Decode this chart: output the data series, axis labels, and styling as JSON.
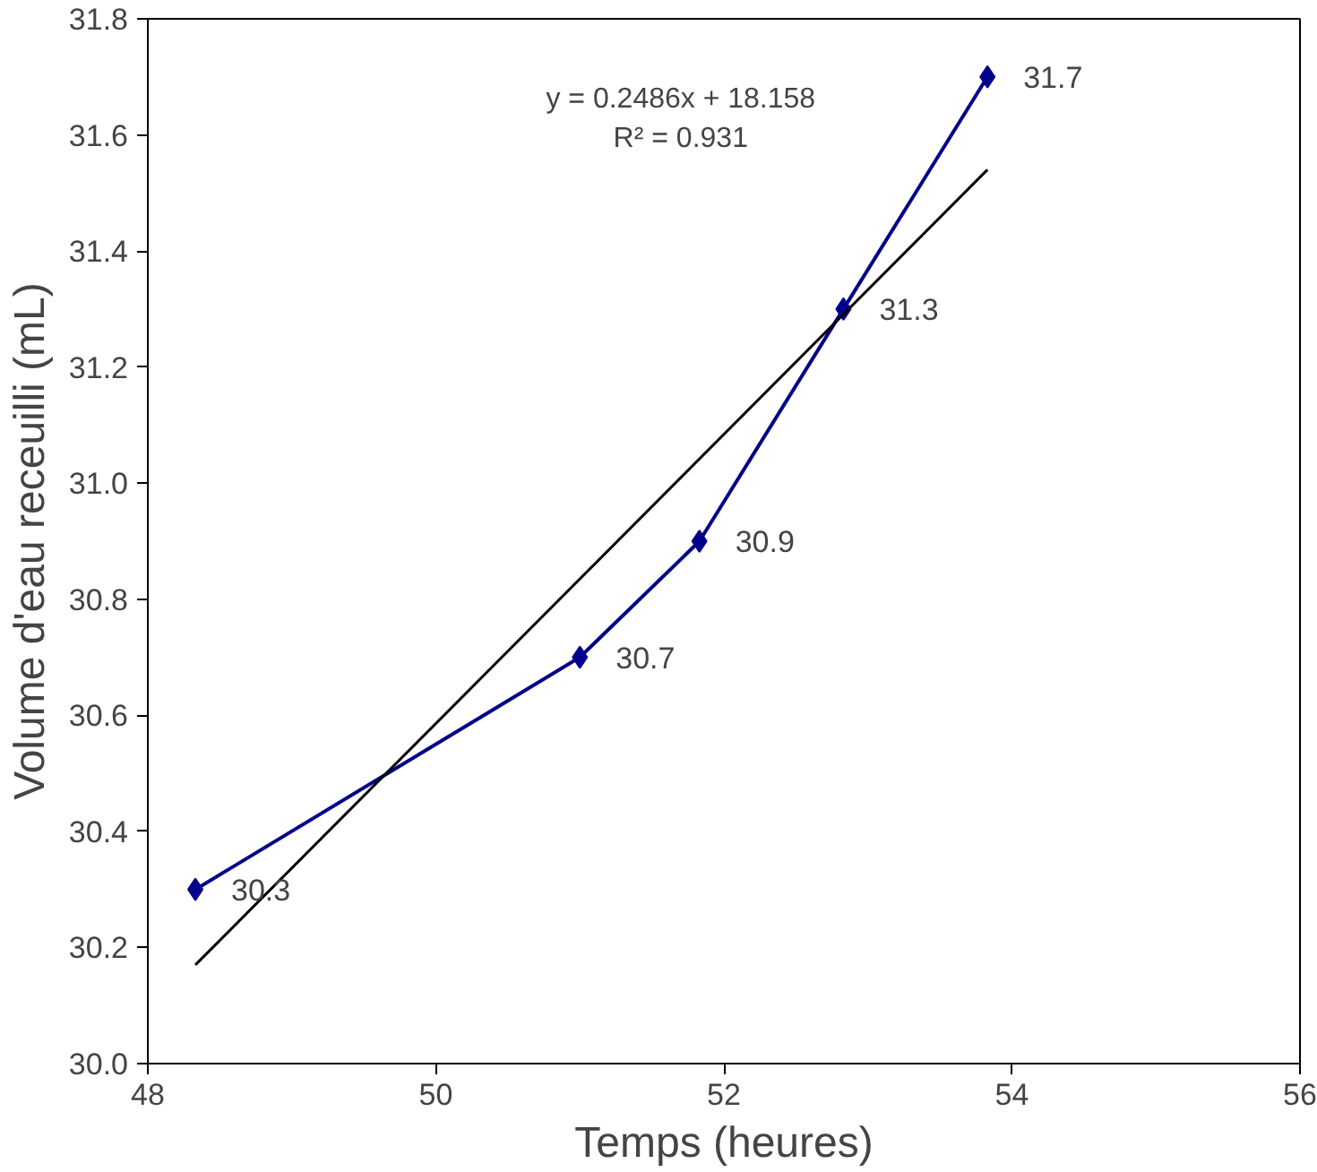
{
  "chart_data": {
    "type": "line",
    "xlabel": "Temps (heures)",
    "ylabel": "Volume d'eau receuilli (mL)",
    "xlim": [
      48,
      56
    ],
    "xticks": [
      48,
      50,
      52,
      54,
      56
    ],
    "ylim": [
      30.0,
      31.8
    ],
    "yticks": [
      {
        "value": 30.0,
        "label": "30.0"
      },
      {
        "value": 30.2,
        "label": "30.2"
      },
      {
        "value": 30.4,
        "label": "30.4"
      },
      {
        "value": 30.6,
        "label": "30.6"
      },
      {
        "value": 30.8,
        "label": "30.8"
      },
      {
        "value": 31.0,
        "label": "31.0"
      },
      {
        "value": 31.2,
        "label": "31.2"
      },
      {
        "value": 31.4,
        "label": "31.4"
      },
      {
        "value": 31.6,
        "label": "31.6"
      },
      {
        "value": 31.8,
        "label": "31.8"
      }
    ],
    "grid": false,
    "series": [
      {
        "color": "#00008b",
        "marker": "diamond",
        "data_labels": true,
        "x": [
          48.33,
          51.0,
          51.83,
          52.83,
          53.83
        ],
        "values": [
          30.3,
          30.7,
          30.9,
          31.3,
          31.7
        ]
      },
      {
        "color": "#000000",
        "marker": "none",
        "x": [
          48.33,
          53.83
        ],
        "values": [
          30.17,
          31.54
        ]
      }
    ],
    "annotations": [
      "y = 0.2486x + 18.158",
      "R² = 0.931"
    ]
  }
}
